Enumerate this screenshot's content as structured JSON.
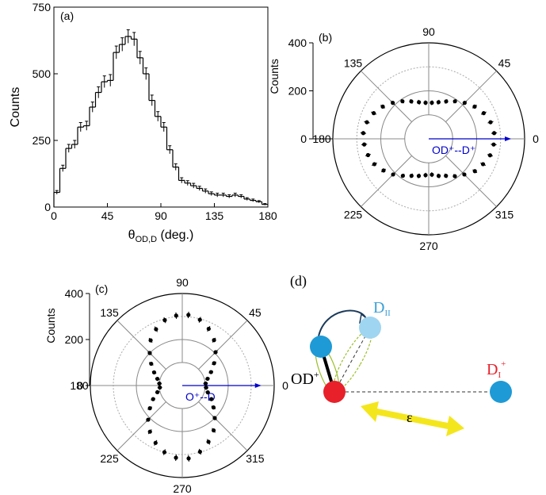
{
  "chart_data": [
    {
      "type": "histogram",
      "panel_label": "(a)",
      "ylabel": "Counts",
      "xlabel": {
        "symbol": "θ",
        "subscript": "OD,D",
        "unit": " (deg.)"
      },
      "bins": [
        0,
        5,
        10,
        15,
        20,
        25,
        30,
        35,
        40,
        45,
        50,
        55,
        60,
        65,
        70,
        75,
        80,
        85,
        90,
        95,
        100,
        105,
        110,
        115,
        120,
        125,
        130,
        135,
        140,
        145,
        150,
        155,
        160,
        165,
        170,
        175,
        180
      ],
      "values": [
        55,
        145,
        220,
        235,
        300,
        305,
        375,
        430,
        470,
        475,
        580,
        610,
        640,
        630,
        560,
        500,
        400,
        340,
        300,
        215,
        150,
        100,
        90,
        80,
        70,
        60,
        50,
        45,
        45,
        40,
        45,
        40,
        30,
        25,
        20,
        10
      ],
      "errors": [
        7,
        12,
        15,
        15,
        17,
        17,
        19,
        21,
        22,
        22,
        24,
        25,
        25,
        25,
        24,
        22,
        20,
        18,
        17,
        15,
        12,
        10,
        9,
        9,
        8,
        8,
        7,
        7,
        7,
        6,
        7,
        6,
        5,
        5,
        4,
        3
      ],
      "color": "#000000",
      "xlim": [
        0,
        180
      ],
      "xticks": [
        0,
        45,
        90,
        135,
        180
      ],
      "ylim": [
        0,
        750
      ],
      "yticks": [
        0,
        250,
        500,
        750
      ]
    },
    {
      "type": "polar_scatter",
      "panel_label": "(b)",
      "ylabel": "Counts",
      "annotation": "OD⁺--D⁺",
      "rlim": [
        0,
        400
      ],
      "rticks": [
        0,
        200,
        400
      ],
      "thetaticks": [
        0,
        45,
        90,
        135,
        180,
        225,
        270,
        315
      ],
      "color": "#000000",
      "arrow_color": "#0000cc",
      "theta": [
        5,
        15,
        25,
        35,
        45,
        55,
        65,
        75,
        85,
        95,
        105,
        115,
        125,
        135,
        145,
        155,
        165,
        175,
        185,
        195,
        205,
        215,
        225,
        235,
        245,
        255,
        265,
        275,
        285,
        295,
        305,
        315,
        325,
        335,
        345,
        355
      ],
      "values": [
        274,
        267,
        253,
        234,
        212,
        191,
        172,
        158,
        151,
        151,
        158,
        172,
        191,
        212,
        234,
        253,
        267,
        274,
        270,
        262,
        250,
        230,
        210,
        188,
        170,
        160,
        152,
        150,
        160,
        170,
        190,
        210,
        235,
        250,
        265,
        272
      ],
      "errors": [
        12,
        12,
        12,
        11,
        11,
        10,
        10,
        10,
        10,
        10,
        10,
        10,
        10,
        11,
        11,
        12,
        12,
        12,
        12,
        12,
        12,
        11,
        11,
        10,
        10,
        10,
        10,
        10,
        10,
        10,
        10,
        11,
        11,
        12,
        12,
        12
      ]
    },
    {
      "type": "polar_scatter",
      "panel_label": "(c)",
      "ylabel": "Counts",
      "annotation": "O⁺--D",
      "rlim": [
        0,
        400
      ],
      "rticks": [
        0,
        200,
        400
      ],
      "thetaticks": [
        0,
        45,
        90,
        135,
        180,
        225,
        270,
        315
      ],
      "color": "#000000",
      "arrow_color": "#0000cc",
      "theta": [
        5,
        15,
        25,
        35,
        45,
        55,
        65,
        75,
        85,
        95,
        105,
        115,
        125,
        135,
        145,
        155,
        165,
        175,
        185,
        195,
        205,
        215,
        225,
        235,
        245,
        255,
        265,
        275,
        285,
        295,
        305,
        315,
        325,
        335,
        345,
        355
      ],
      "values": [
        102,
        114,
        138,
        169,
        205,
        241,
        272,
        296,
        308,
        305,
        294,
        270,
        240,
        200,
        165,
        135,
        112,
        100,
        98,
        112,
        140,
        172,
        210,
        245,
        275,
        300,
        315,
        318,
        298,
        270,
        238,
        200,
        166,
        140,
        115,
        104
      ],
      "errors": [
        10,
        10,
        10,
        11,
        12,
        12,
        13,
        13,
        14,
        14,
        13,
        13,
        12,
        12,
        11,
        10,
        10,
        10,
        10,
        10,
        10,
        11,
        12,
        12,
        13,
        13,
        14,
        14,
        13,
        13,
        12,
        12,
        11,
        10,
        10,
        10
      ]
    }
  ],
  "diagram": {
    "panel_label": "(d)",
    "d2": {
      "text": "D",
      "subscript": "II"
    },
    "od": {
      "text": "OD",
      "superscript": "+"
    },
    "d1": {
      "text": "D",
      "subscript": "I",
      "superscript": "+"
    },
    "field": "ε"
  }
}
